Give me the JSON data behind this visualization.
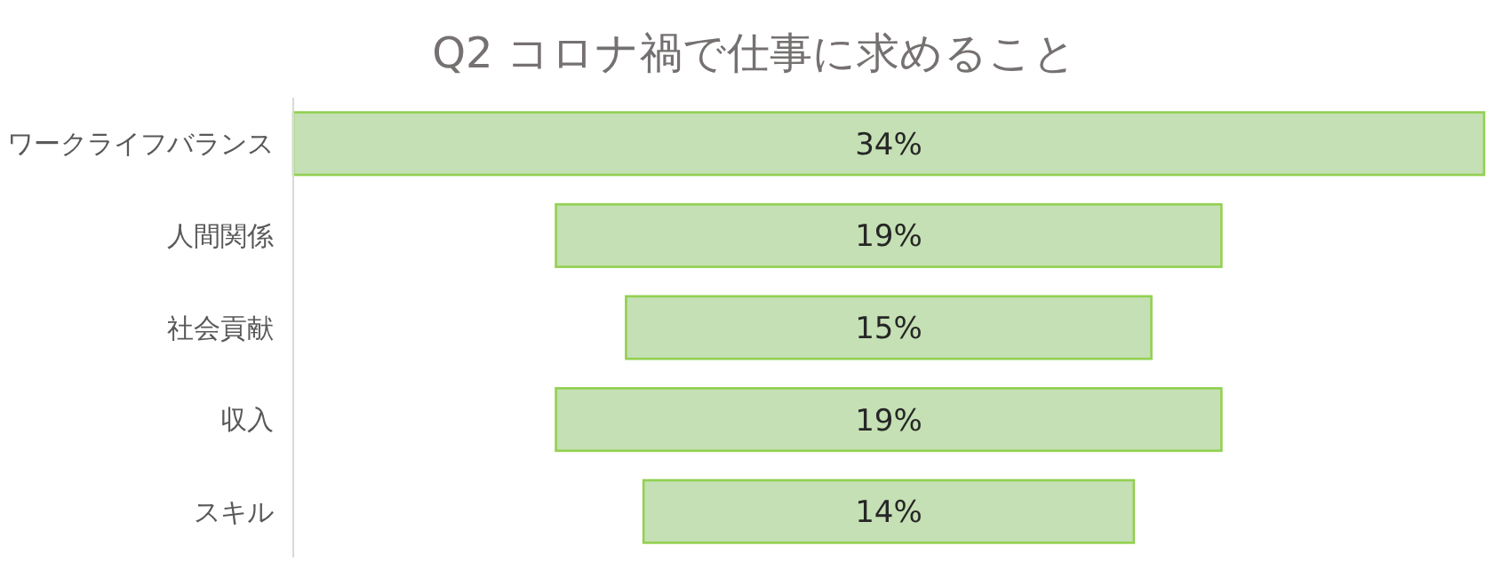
{
  "chart_data": {
    "type": "other",
    "title": "Q2 コロナ禍で仕事に求めること",
    "categories": [
      "ワークライフバランス",
      "人間関係",
      "社会貢献",
      "収入",
      "スキル"
    ],
    "values": [
      34,
      19,
      15,
      19,
      14
    ],
    "value_labels": [
      "34%",
      "19%",
      "15%",
      "19%",
      "14%"
    ],
    "color": "#c5e0b4"
  }
}
